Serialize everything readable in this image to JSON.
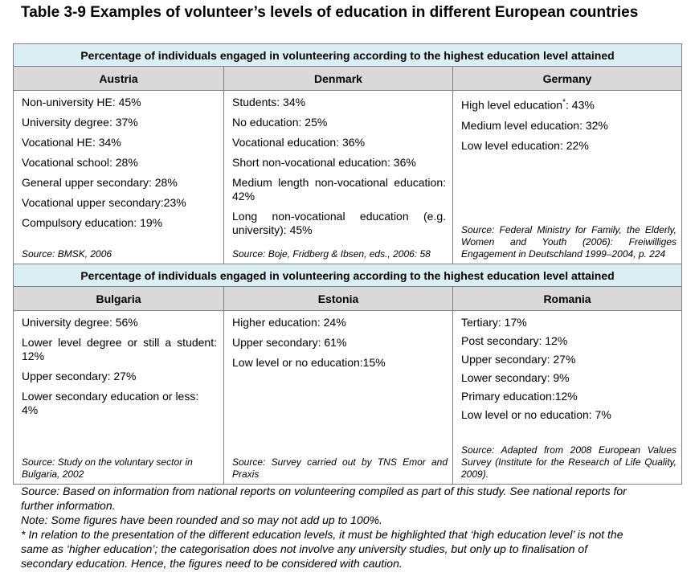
{
  "title": "Table 3-9 Examples of volunteer’s levels of education in different European countries",
  "section_header": "Percentage of individuals engaged in volunteering according to the highest education level attained",
  "row1": {
    "austria": {
      "name": "Austria",
      "items": [
        "Non-university HE: 45%",
        "University degree: 37%",
        "Vocational HE: 34%",
        "Vocational school: 28%",
        "General upper secondary: 28%",
        "Vocational upper secondary:23%",
        "Compulsory education: 19%"
      ],
      "source": "Source: BMSK, 2006"
    },
    "denmark": {
      "name": "Denmark",
      "items": [
        "Students: 34%",
        "No education: 25%",
        "Vocational education: 36%",
        "Short non-vocational education: 36%",
        "Medium length non-vocational education: 42%",
        "Long non-vocational education (e.g. university): 45%"
      ],
      "source": "Source: Boje, Fridberg & Ibsen, eds., 2006: 58"
    },
    "germany": {
      "name": "Germany",
      "item1_prefix": "High level education",
      "item1_mark": "*",
      "item1_suffix": ": 43%",
      "items": [
        "Medium level education: 32%",
        "Low level education: 22%"
      ],
      "source": "Source: Federal Ministry for Family, the Elderly, Women and Youth (2006): Freiwilliges Engagement in Deutschland 1999–2004, p. 224"
    }
  },
  "row2": {
    "bulgaria": {
      "name": "Bulgaria",
      "items": [
        "University degree: 56%",
        "Lower level degree or still a student: 12%",
        "Upper secondary: 27%",
        "Lower secondary education or less: 4%"
      ],
      "source": "Source: Study on the voluntary sector in Bulgaria, 2002"
    },
    "estonia": {
      "name": "Estonia",
      "items": [
        "Higher education: 24%",
        "Upper secondary: 61%",
        "Low level or no education:15%"
      ],
      "source": "Source: Survey carried out by TNS Emor and Praxis"
    },
    "romania": {
      "name": "Romania",
      "items": [
        "Tertiary: 17%",
        "Post secondary: 12%",
        "Upper secondary: 27%",
        "Lower secondary: 9%",
        "Primary education:12%",
        "Low level or no education: 7%"
      ],
      "source": "Source: Adapted from 2008 European Values Survey (Institute for the Research of Life Quality, 2009)."
    }
  },
  "notes": {
    "source": "Source: Based on information from national reports on volunteering compiled as part of this study. See national reports for further information.",
    "note": "Note: Some figures have been rounded and so may not add up to 100%.",
    "footnote": "* In relation to the presentation of the different education levels, it must be highlighted that ‘high education level’ is not the same as ‘higher education’; the categorisation does not involve any university studies, but only up to finalisation of secondary education. Hence, the figures need to be considered with caution."
  }
}
